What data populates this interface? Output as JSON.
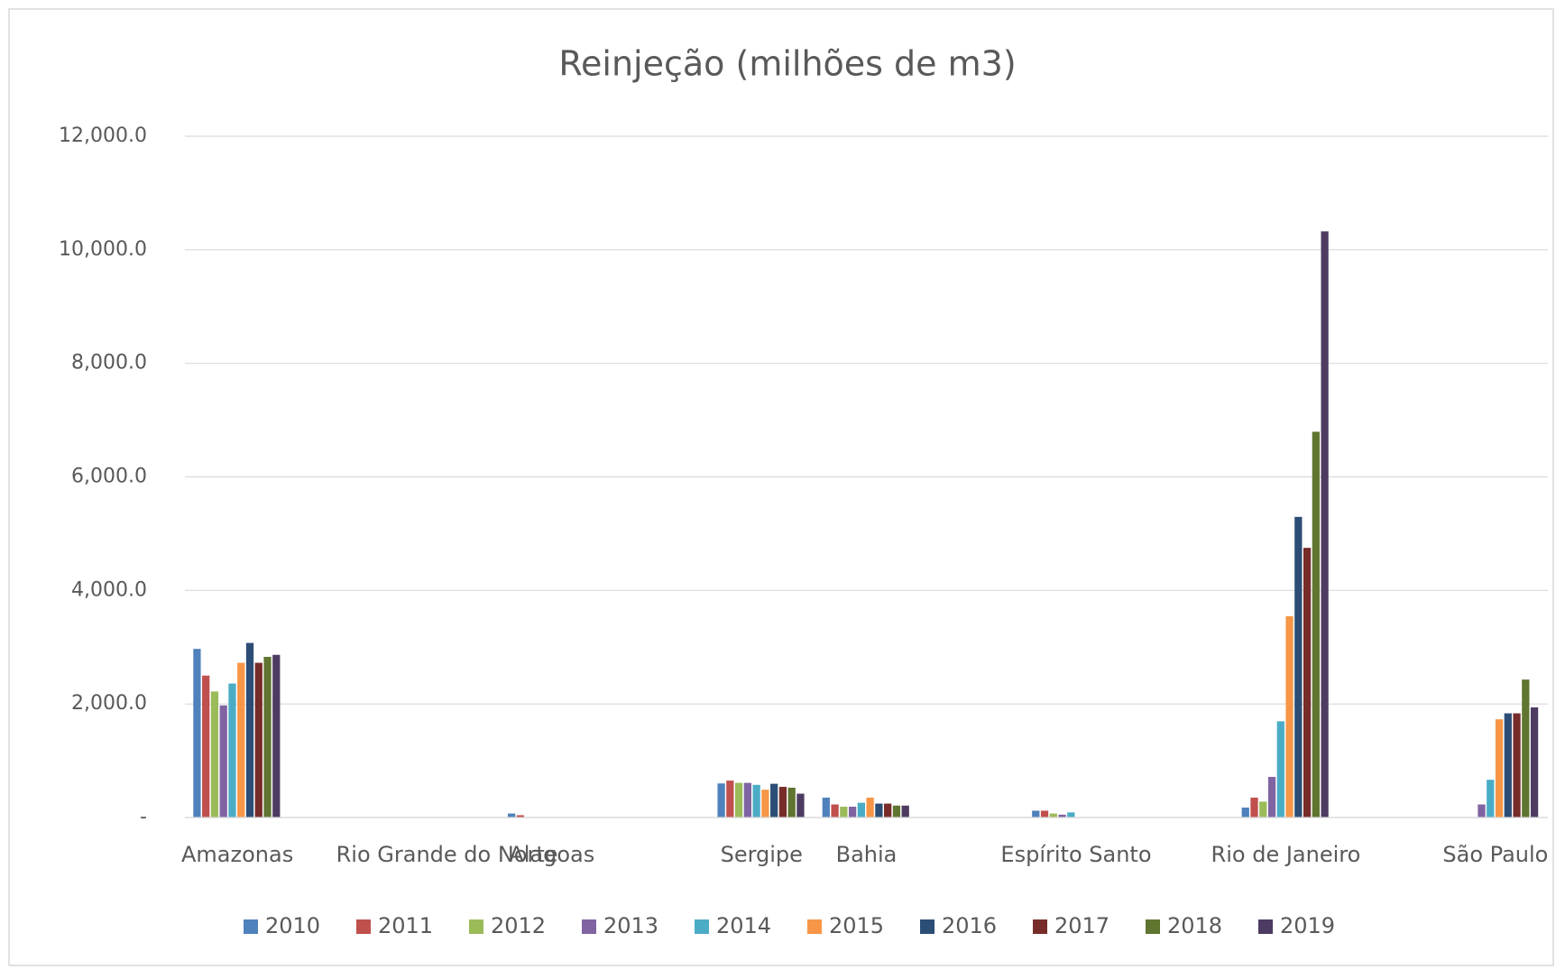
{
  "chart_data": {
    "type": "bar",
    "title": "Reinjeção (milhões de m3)",
    "categories": [
      "Amazonas",
      null,
      "Rio Grande do Norte",
      "Alagoas",
      null,
      "Sergipe",
      "Bahia",
      null,
      "Espírito Santo",
      null,
      "Rio de Janeiro",
      null,
      "São Paulo"
    ],
    "series": [
      {
        "name": "2010",
        "color": "#4f81bd",
        "values": [
          2970,
          0,
          0,
          70,
          0,
          600,
          350,
          0,
          120,
          0,
          175,
          0,
          0
        ]
      },
      {
        "name": "2011",
        "color": "#c0504d",
        "values": [
          2500,
          0,
          0,
          40,
          0,
          650,
          230,
          0,
          120,
          0,
          350,
          0,
          0
        ]
      },
      {
        "name": "2012",
        "color": "#9bbb59",
        "values": [
          2220,
          0,
          0,
          0,
          0,
          610,
          190,
          0,
          70,
          0,
          280,
          0,
          0
        ]
      },
      {
        "name": "2013",
        "color": "#8064a2",
        "values": [
          1975,
          0,
          0,
          0,
          0,
          610,
          190,
          0,
          50,
          0,
          715,
          0,
          230
        ]
      },
      {
        "name": "2014",
        "color": "#4bacc6",
        "values": [
          2360,
          0,
          0,
          0,
          0,
          575,
          260,
          0,
          90,
          0,
          1695,
          0,
          665
        ]
      },
      {
        "name": "2015",
        "color": "#f79646",
        "values": [
          2725,
          0,
          0,
          0,
          0,
          490,
          350,
          0,
          0,
          0,
          3545,
          0,
          1730
        ]
      },
      {
        "name": "2016",
        "color": "#2c4d75",
        "values": [
          3075,
          0,
          0,
          0,
          0,
          594,
          245,
          0,
          0,
          0,
          5295,
          0,
          1835
        ]
      },
      {
        "name": "2017",
        "color": "#772c2a",
        "values": [
          2725,
          0,
          0,
          0,
          0,
          540,
          245,
          0,
          0,
          0,
          4750,
          0,
          1835
        ]
      },
      {
        "name": "2018",
        "color": "#5f7530",
        "values": [
          2830,
          0,
          0,
          0,
          0,
          525,
          210,
          0,
          0,
          0,
          6795,
          0,
          2430
        ]
      },
      {
        "name": "2019",
        "color": "#4d3b62",
        "values": [
          2865,
          0,
          0,
          0,
          0,
          420,
          210,
          0,
          0,
          0,
          10325,
          0,
          1940
        ]
      }
    ],
    "ylim": [
      0,
      12000
    ],
    "yticks": [
      {
        "value": 0,
        "label": "-"
      },
      {
        "value": 2000,
        "label": "2,000.0"
      },
      {
        "value": 4000,
        "label": "4,000.0"
      },
      {
        "value": 6000,
        "label": "6,000.0"
      },
      {
        "value": 8000,
        "label": "8,000.0"
      },
      {
        "value": 10000,
        "label": "10,000.0"
      },
      {
        "value": 12000,
        "label": "12,000.0"
      }
    ],
    "grid": true,
    "legend": "bottom"
  }
}
